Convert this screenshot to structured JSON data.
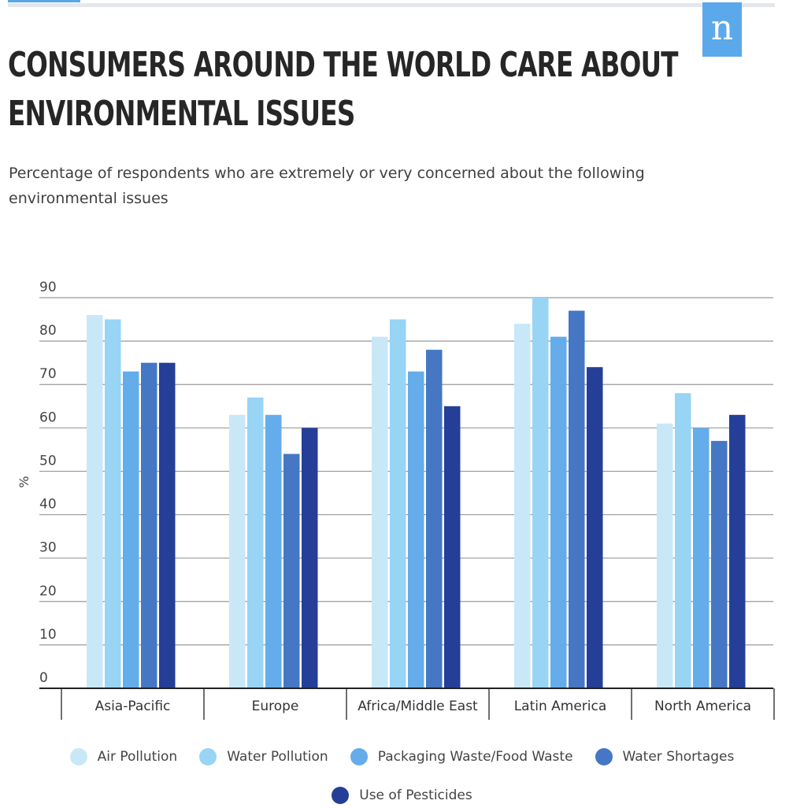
{
  "brand": {
    "logo_text": "n"
  },
  "header": {
    "title_lines": [
      "CONSUMERS AROUND THE WORLD CARE ABOUT",
      "ENVIRONMENTAL ISSUES"
    ],
    "subtitle": "Percentage of respondents who are extremely or very concerned about the following environmental issues"
  },
  "colors": {
    "Air Pollution": "#c8e8f8",
    "Water Pollution": "#98d4f4",
    "Packaging Waste/Food Waste": "#64acea",
    "Water Shortages": "#4577c4",
    "Use of Pesticides": "#253f98"
  },
  "chart_data": {
    "type": "bar",
    "title": "CONSUMERS AROUND THE WORLD CARE ABOUT ENVIRONMENTAL ISSUES",
    "subtitle": "Percentage of respondents who are extremely or very concerned about the following environmental issues",
    "xlabel": "",
    "ylabel": "%",
    "ylim": [
      0,
      90
    ],
    "yticks": [
      0,
      10,
      20,
      30,
      40,
      50,
      60,
      70,
      80,
      90
    ],
    "grid": true,
    "legend_position": "bottom",
    "categories": [
      "Asia-Pacific",
      "Europe",
      "Africa/Middle East",
      "Latin America",
      "North America"
    ],
    "series": [
      {
        "name": "Air Pollution",
        "values": [
          86,
          63,
          81,
          84,
          61
        ]
      },
      {
        "name": "Water Pollution",
        "values": [
          85,
          67,
          85,
          90,
          68
        ]
      },
      {
        "name": "Packaging Waste/Food Waste",
        "values": [
          73,
          63,
          73,
          81,
          60
        ]
      },
      {
        "name": "Water Shortages",
        "values": [
          75,
          54,
          78,
          87,
          57
        ]
      },
      {
        "name": "Use of Pesticides",
        "values": [
          75,
          60,
          65,
          74,
          63
        ]
      }
    ]
  }
}
